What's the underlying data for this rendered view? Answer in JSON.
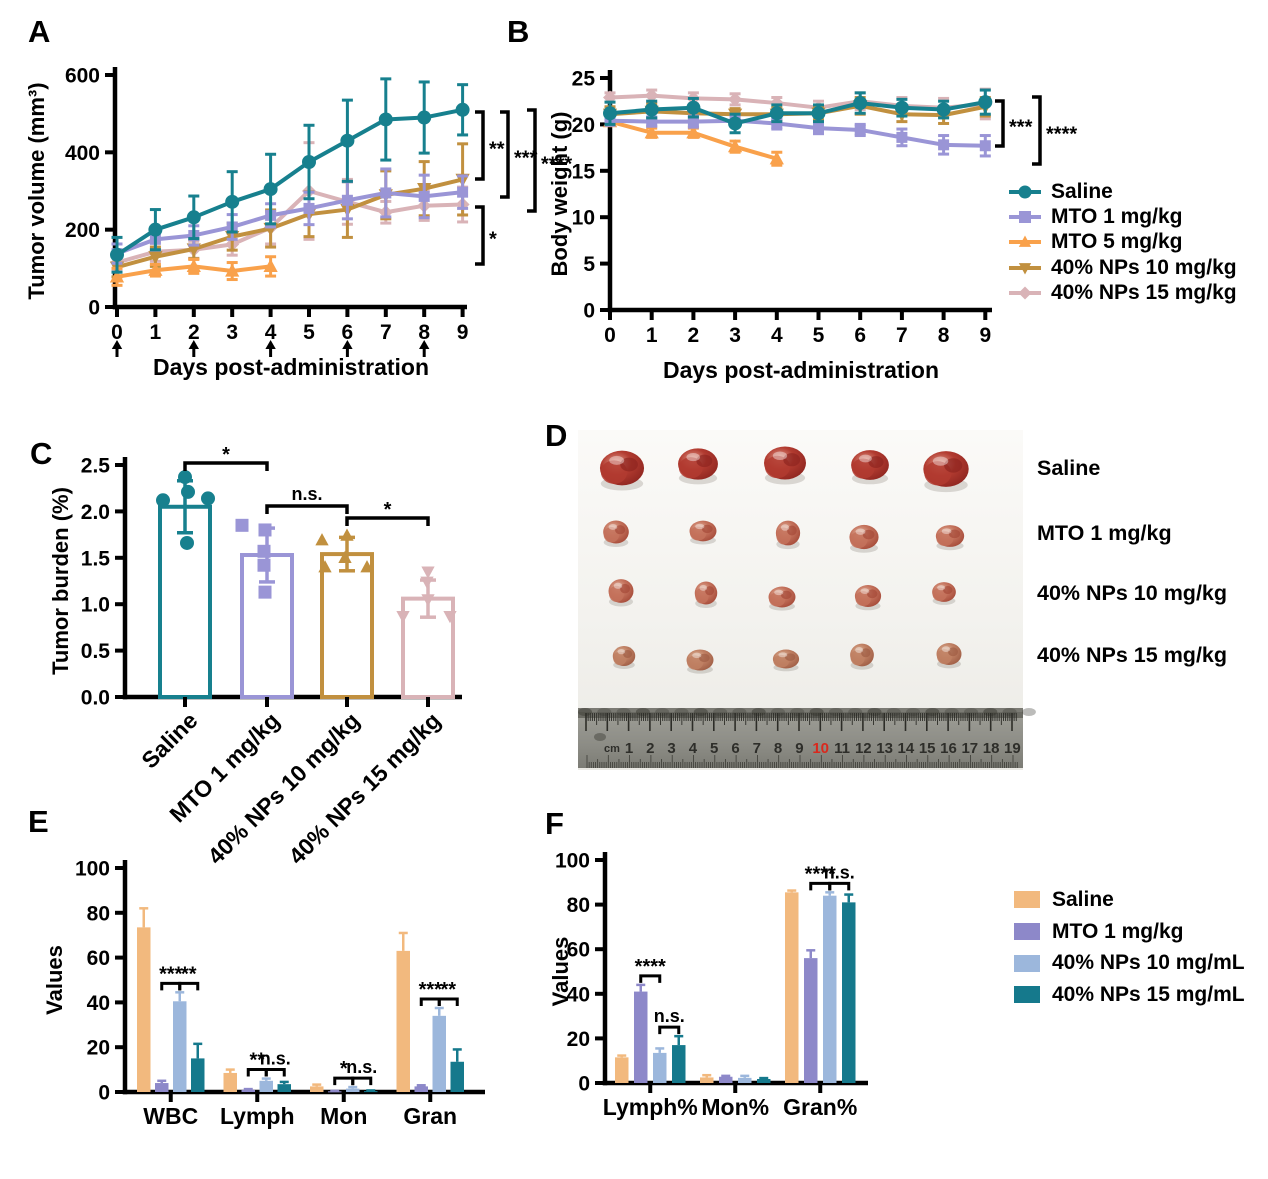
{
  "panels": {
    "a": {
      "label": "A"
    },
    "b": {
      "label": "B"
    },
    "c": {
      "label": "C"
    },
    "d": {
      "label": "D",
      "photo": {
        "rows": [
          {
            "label": "Saline",
            "tumor_w": 42,
            "tumor_h": 33,
            "base": "#b23b30",
            "dark": "#8c241f",
            "light": "#e09a8a"
          },
          {
            "label": "MTO 1 mg/kg",
            "tumor_w": 27,
            "tumor_h": 23,
            "base": "#c4725c",
            "dark": "#a34736",
            "light": "#e3b49e"
          },
          {
            "label": "40% NPs 10 mg/kg",
            "tumor_w": 25,
            "tumor_h": 22,
            "base": "#c4725c",
            "dark": "#a34736",
            "light": "#e3b49e"
          },
          {
            "label": "40% NPs 15 mg/kg",
            "tumor_w": 25,
            "tumor_h": 21,
            "base": "#c08063",
            "dark": "#9c5a42",
            "light": "#ddb79c"
          }
        ],
        "columns": 5,
        "ruler": {
          "unit": "cm",
          "numbers": [
            "1",
            "2",
            "3",
            "4",
            "5",
            "6",
            "7",
            "8",
            "9",
            "10",
            "11",
            "12",
            "13",
            "14",
            "15",
            "16",
            "17",
            "18",
            "19"
          ],
          "red_number": "10",
          "number_color": "#2e2e2a",
          "red_color": "#d9291e"
        }
      }
    },
    "e": {
      "label": "E"
    },
    "f": {
      "label": "F"
    }
  },
  "chart_data": [
    {
      "id": "A",
      "type": "line",
      "xlabel": "Days post-administration",
      "ylabel": "Tumor volume (mm³)",
      "x": [
        0,
        1,
        2,
        3,
        4,
        5,
        6,
        7,
        8,
        9
      ],
      "ylim": [
        0,
        600
      ],
      "yticks": [
        "0",
        "200",
        "400",
        "600"
      ],
      "dose_arrows_x": [
        0,
        2,
        4,
        6,
        8
      ],
      "series": [
        {
          "name": "Saline",
          "color": "#17808E",
          "marker": "circle",
          "values": [
            135,
            200,
            232,
            272,
            305,
            375,
            430,
            485,
            490,
            510
          ],
          "errors": [
            45,
            52,
            55,
            78,
            90,
            95,
            105,
            105,
            92,
            65
          ]
        },
        {
          "name": "MTO 1 mg/kg",
          "color": "#9A95D6",
          "marker": "square",
          "values": [
            138,
            175,
            185,
            207,
            237,
            255,
            276,
            295,
            286,
            297
          ],
          "errors": [
            25,
            28,
            25,
            32,
            30,
            42,
            48,
            62,
            55,
            42
          ]
        },
        {
          "name": "MTO 5 mg/kg",
          "color": "#F9A14B",
          "marker": "triangle",
          "values": [
            78,
            95,
            105,
            93,
            105
          ],
          "errors": [
            22,
            15,
            18,
            22,
            25
          ]
        },
        {
          "name": "40% NPs 10 mg/kg",
          "color": "#C1903F",
          "marker": "tridown",
          "values": [
            103,
            130,
            150,
            182,
            203,
            240,
            252,
            290,
            306,
            330
          ],
          "errors": [
            25,
            25,
            25,
            35,
            48,
            58,
            72,
            62,
            70,
            92
          ]
        },
        {
          "name": "40% NPs 15 mg/kg",
          "color": "#D9B3B7",
          "marker": "diamond",
          "values": [
            115,
            143,
            148,
            162,
            205,
            300,
            272,
            245,
            262,
            265
          ],
          "errors": [
            20,
            25,
            22,
            28,
            42,
            125,
            58,
            28,
            38,
            45
          ]
        }
      ],
      "significance": [
        {
          "label": "**"
        },
        {
          "label": "***"
        },
        {
          "label": "****"
        },
        {
          "label": "*"
        }
      ]
    },
    {
      "id": "B",
      "type": "line",
      "xlabel": "Days post-administration",
      "ylabel": "Body weight (g)",
      "x": [
        0,
        1,
        2,
        3,
        4,
        5,
        6,
        7,
        8,
        9
      ],
      "ylim": [
        0,
        25
      ],
      "yticks": [
        "0",
        "5",
        "10",
        "15",
        "20",
        "25"
      ],
      "legend_position": "right",
      "series": [
        {
          "name": "Saline",
          "color": "#17808E",
          "marker": "circle",
          "values": [
            21.2,
            21.6,
            21.8,
            20.1,
            21.2,
            21.2,
            22.3,
            21.8,
            21.6,
            22.4
          ],
          "errors": [
            1.2,
            0.9,
            1.0,
            1.0,
            0.9,
            0.9,
            1.1,
            0.9,
            0.9,
            1.3
          ]
        },
        {
          "name": "MTO 1 mg/kg",
          "color": "#9A95D6",
          "marker": "square",
          "values": [
            20.4,
            20.3,
            20.3,
            20.4,
            20.1,
            19.6,
            19.4,
            18.6,
            17.8,
            17.7
          ],
          "errors": [
            0.5,
            0.5,
            0.6,
            0.6,
            0.6,
            0.6,
            0.6,
            0.9,
            1.0,
            1.1
          ]
        },
        {
          "name": "MTO 5 mg/kg",
          "color": "#F9A14B",
          "marker": "triangle",
          "values": [
            20.3,
            19.1,
            19.1,
            17.6,
            16.3
          ],
          "errors": [
            0.4,
            0.5,
            0.5,
            0.6,
            0.7
          ]
        },
        {
          "name": "40% NPs 10 mg/kg",
          "color": "#C1903F",
          "marker": "tridown",
          "values": [
            21.1,
            21.4,
            21.2,
            21.1,
            21.1,
            21.2,
            22.0,
            21.1,
            21.0,
            21.9
          ],
          "errors": [
            0.8,
            0.8,
            0.7,
            0.6,
            0.7,
            0.7,
            0.9,
            0.8,
            0.9,
            1.0
          ]
        },
        {
          "name": "40% NPs 15 mg/kg",
          "color": "#D9B3B7",
          "marker": "diamond",
          "values": [
            22.9,
            23.1,
            22.8,
            22.7,
            22.3,
            21.8,
            22.5,
            22.0,
            21.8,
            22.2
          ],
          "errors": [
            0.5,
            0.6,
            0.6,
            0.6,
            0.6,
            0.7,
            0.9,
            0.9,
            1.0,
            1.6
          ]
        }
      ],
      "significance": [
        {
          "label": "***"
        },
        {
          "label": "****"
        }
      ]
    },
    {
      "id": "C",
      "type": "bar",
      "ylabel": "Tumor burden (%)",
      "categories": [
        "Saline",
        "MTO 1 mg/kg",
        "40% NPs 10 mg/kg",
        "40% NPs 15 mg/kg"
      ],
      "values": [
        2.05,
        1.53,
        1.54,
        1.06
      ],
      "errors": [
        0.28,
        0.29,
        0.18,
        0.2
      ],
      "colors": [
        "#17808E",
        "#9A95D6",
        "#C1903F",
        "#D9B3B7"
      ],
      "markers": [
        "circle",
        "square",
        "triangle",
        "tridown"
      ],
      "points": [
        [
          [
            0,
            2.37
          ],
          [
            3,
            2.21
          ],
          [
            -22,
            2.12
          ],
          [
            23,
            2.14
          ],
          [
            2,
            1.66
          ]
        ],
        [
          [
            -25,
            1.85
          ],
          [
            -2,
            1.8
          ],
          [
            -3,
            1.57
          ],
          [
            -3,
            1.42
          ],
          [
            -2,
            1.13
          ]
        ],
        [
          [
            -25,
            1.69
          ],
          [
            0,
            1.74
          ],
          [
            -22,
            1.4
          ],
          [
            20,
            1.4
          ],
          [
            -2,
            1.5
          ]
        ],
        [
          [
            0,
            1.35
          ],
          [
            -1,
            1.24
          ],
          [
            -25,
            0.87
          ],
          [
            22,
            0.87
          ],
          [
            0,
            1.05
          ]
        ]
      ],
      "ylim": [
        0,
        2.5
      ],
      "yticks": [
        "0.0",
        "0.5",
        "1.0",
        "1.5",
        "2.0",
        "2.5"
      ],
      "significance": [
        {
          "pair": [
            0,
            1
          ],
          "label": "*"
        },
        {
          "pair": [
            1,
            2
          ],
          "label": "n.s."
        },
        {
          "pair": [
            2,
            3
          ],
          "label": "*"
        }
      ]
    },
    {
      "id": "E",
      "type": "grouped-bar",
      "ylabel": "Values",
      "categories": [
        "WBC",
        "Lymph",
        "Mon",
        "Gran"
      ],
      "ylim": [
        0,
        100
      ],
      "yticks": [
        "0",
        "20",
        "40",
        "60",
        "80",
        "100"
      ],
      "series": [
        {
          "name": "Saline",
          "color": "#F2B97E",
          "values": [
            73.5,
            8.5,
            2.5,
            63
          ],
          "errors": [
            8.5,
            1.5,
            0.8,
            8
          ]
        },
        {
          "name": "MTO 1 mg/kg",
          "color": "#8D88C9",
          "values": [
            4,
            1,
            0.3,
            2.5
          ],
          "errors": [
            1,
            0.3,
            0.2,
            0.5
          ]
        },
        {
          "name": "40% NPs 10 mg/mL",
          "color": "#9CB7DC",
          "values": [
            40.5,
            5,
            1.5,
            34
          ],
          "errors": [
            4,
            1,
            0.7,
            3.5
          ]
        },
        {
          "name": "40% NPs 15 mg/mL",
          "color": "#15798C",
          "values": [
            15,
            3.5,
            0.4,
            13.5
          ],
          "errors": [
            6.5,
            1,
            0.3,
            5.5
          ]
        }
      ],
      "significance": [
        {
          "cat": 0,
          "pair": [
            1,
            2
          ],
          "label": "***"
        },
        {
          "cat": 0,
          "pair": [
            2,
            3
          ],
          "label": "**"
        },
        {
          "cat": 1,
          "pair": [
            1,
            2
          ],
          "label": "**"
        },
        {
          "cat": 1,
          "pair": [
            2,
            3
          ],
          "label": "n.s."
        },
        {
          "cat": 2,
          "pair": [
            1,
            2
          ],
          "label": "*"
        },
        {
          "cat": 2,
          "pair": [
            2,
            3
          ],
          "label": "n.s."
        },
        {
          "cat": 3,
          "pair": [
            1,
            2
          ],
          "label": "***"
        },
        {
          "cat": 3,
          "pair": [
            2,
            3
          ],
          "label": "**"
        }
      ]
    },
    {
      "id": "F",
      "type": "grouped-bar",
      "ylabel": "Values",
      "categories": [
        "Lymph%",
        "Mon%",
        "Gran%"
      ],
      "ylim": [
        0,
        100
      ],
      "yticks": [
        "0",
        "20",
        "40",
        "60",
        "80",
        "100"
      ],
      "legend_position": "right",
      "series": [
        {
          "name": "Saline",
          "color": "#F2B97E",
          "values": [
            11.5,
            2.5,
            85.5
          ],
          "errors": [
            0.8,
            1,
            0.8
          ]
        },
        {
          "name": "MTO 1 mg/kg",
          "color": "#8D88C9",
          "values": [
            41,
            2.8,
            56
          ],
          "errors": [
            3,
            0.4,
            3.5
          ]
        },
        {
          "name": "40% NPs 10 mg/mL",
          "color": "#9CB7DC",
          "values": [
            13.5,
            2.3,
            84
          ],
          "errors": [
            2,
            0.9,
            1.5
          ]
        },
        {
          "name": "40% NPs 15 mg/mL",
          "color": "#15798C",
          "values": [
            17,
            1.8,
            81
          ],
          "errors": [
            4,
            0.4,
            3.5
          ]
        }
      ],
      "significance": [
        {
          "cat": 0,
          "pair": [
            1,
            2
          ],
          "label": "****"
        },
        {
          "cat": 0,
          "pair": [
            2,
            3
          ],
          "label": "n.s."
        },
        {
          "cat": 2,
          "pair": [
            1,
            2
          ],
          "label": "****"
        },
        {
          "cat": 2,
          "pair": [
            2,
            3
          ],
          "label": "n.s."
        }
      ]
    }
  ]
}
